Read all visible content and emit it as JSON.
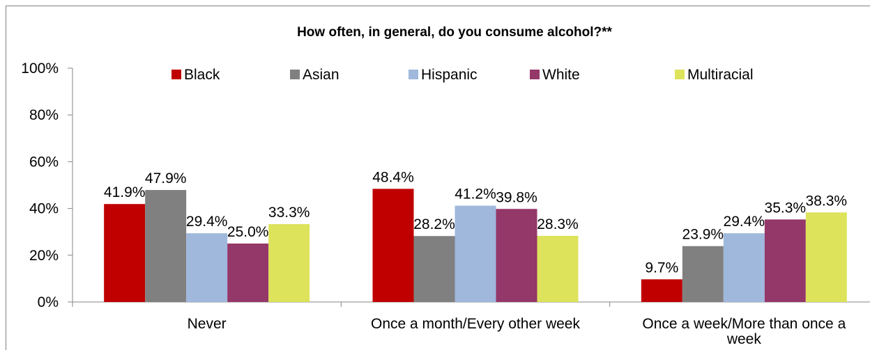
{
  "chart_data": {
    "type": "bar",
    "title": "How often, in general, do you consume alcohol?**",
    "categories": [
      [
        "Never"
      ],
      [
        "Once a month/Every other week"
      ],
      [
        "Once a week/More than once a",
        "week"
      ]
    ],
    "series": [
      {
        "name": "Black",
        "color": "#c00000",
        "values": [
          41.9,
          48.4,
          9.7
        ],
        "labels": [
          "41.9%",
          "48.4%",
          "9.7%"
        ]
      },
      {
        "name": "Asian",
        "color": "#808080",
        "values": [
          47.9,
          28.2,
          23.9
        ],
        "labels": [
          "47.9%",
          "28.2%",
          "23.9%"
        ]
      },
      {
        "name": "Hispanic",
        "color": "#9fb8dc",
        "values": [
          29.4,
          41.2,
          29.4
        ],
        "labels": [
          "29.4%",
          "41.2%",
          "29.4%"
        ]
      },
      {
        "name": "White",
        "color": "#943769",
        "values": [
          25.0,
          39.8,
          35.3
        ],
        "labels": [
          "25.0%",
          "39.8%",
          "35.3%"
        ]
      },
      {
        "name": "Multiracial",
        "color": "#dde35a",
        "values": [
          33.3,
          28.3,
          38.3
        ],
        "labels": [
          "33.3%",
          "28.3%",
          "38.3%"
        ]
      }
    ],
    "yticks": [
      "0%",
      "20%",
      "40%",
      "60%",
      "80%",
      "100%"
    ],
    "ylim": [
      0,
      100
    ],
    "xlabel": "",
    "ylabel": "",
    "legend": "top",
    "grid": false
  }
}
